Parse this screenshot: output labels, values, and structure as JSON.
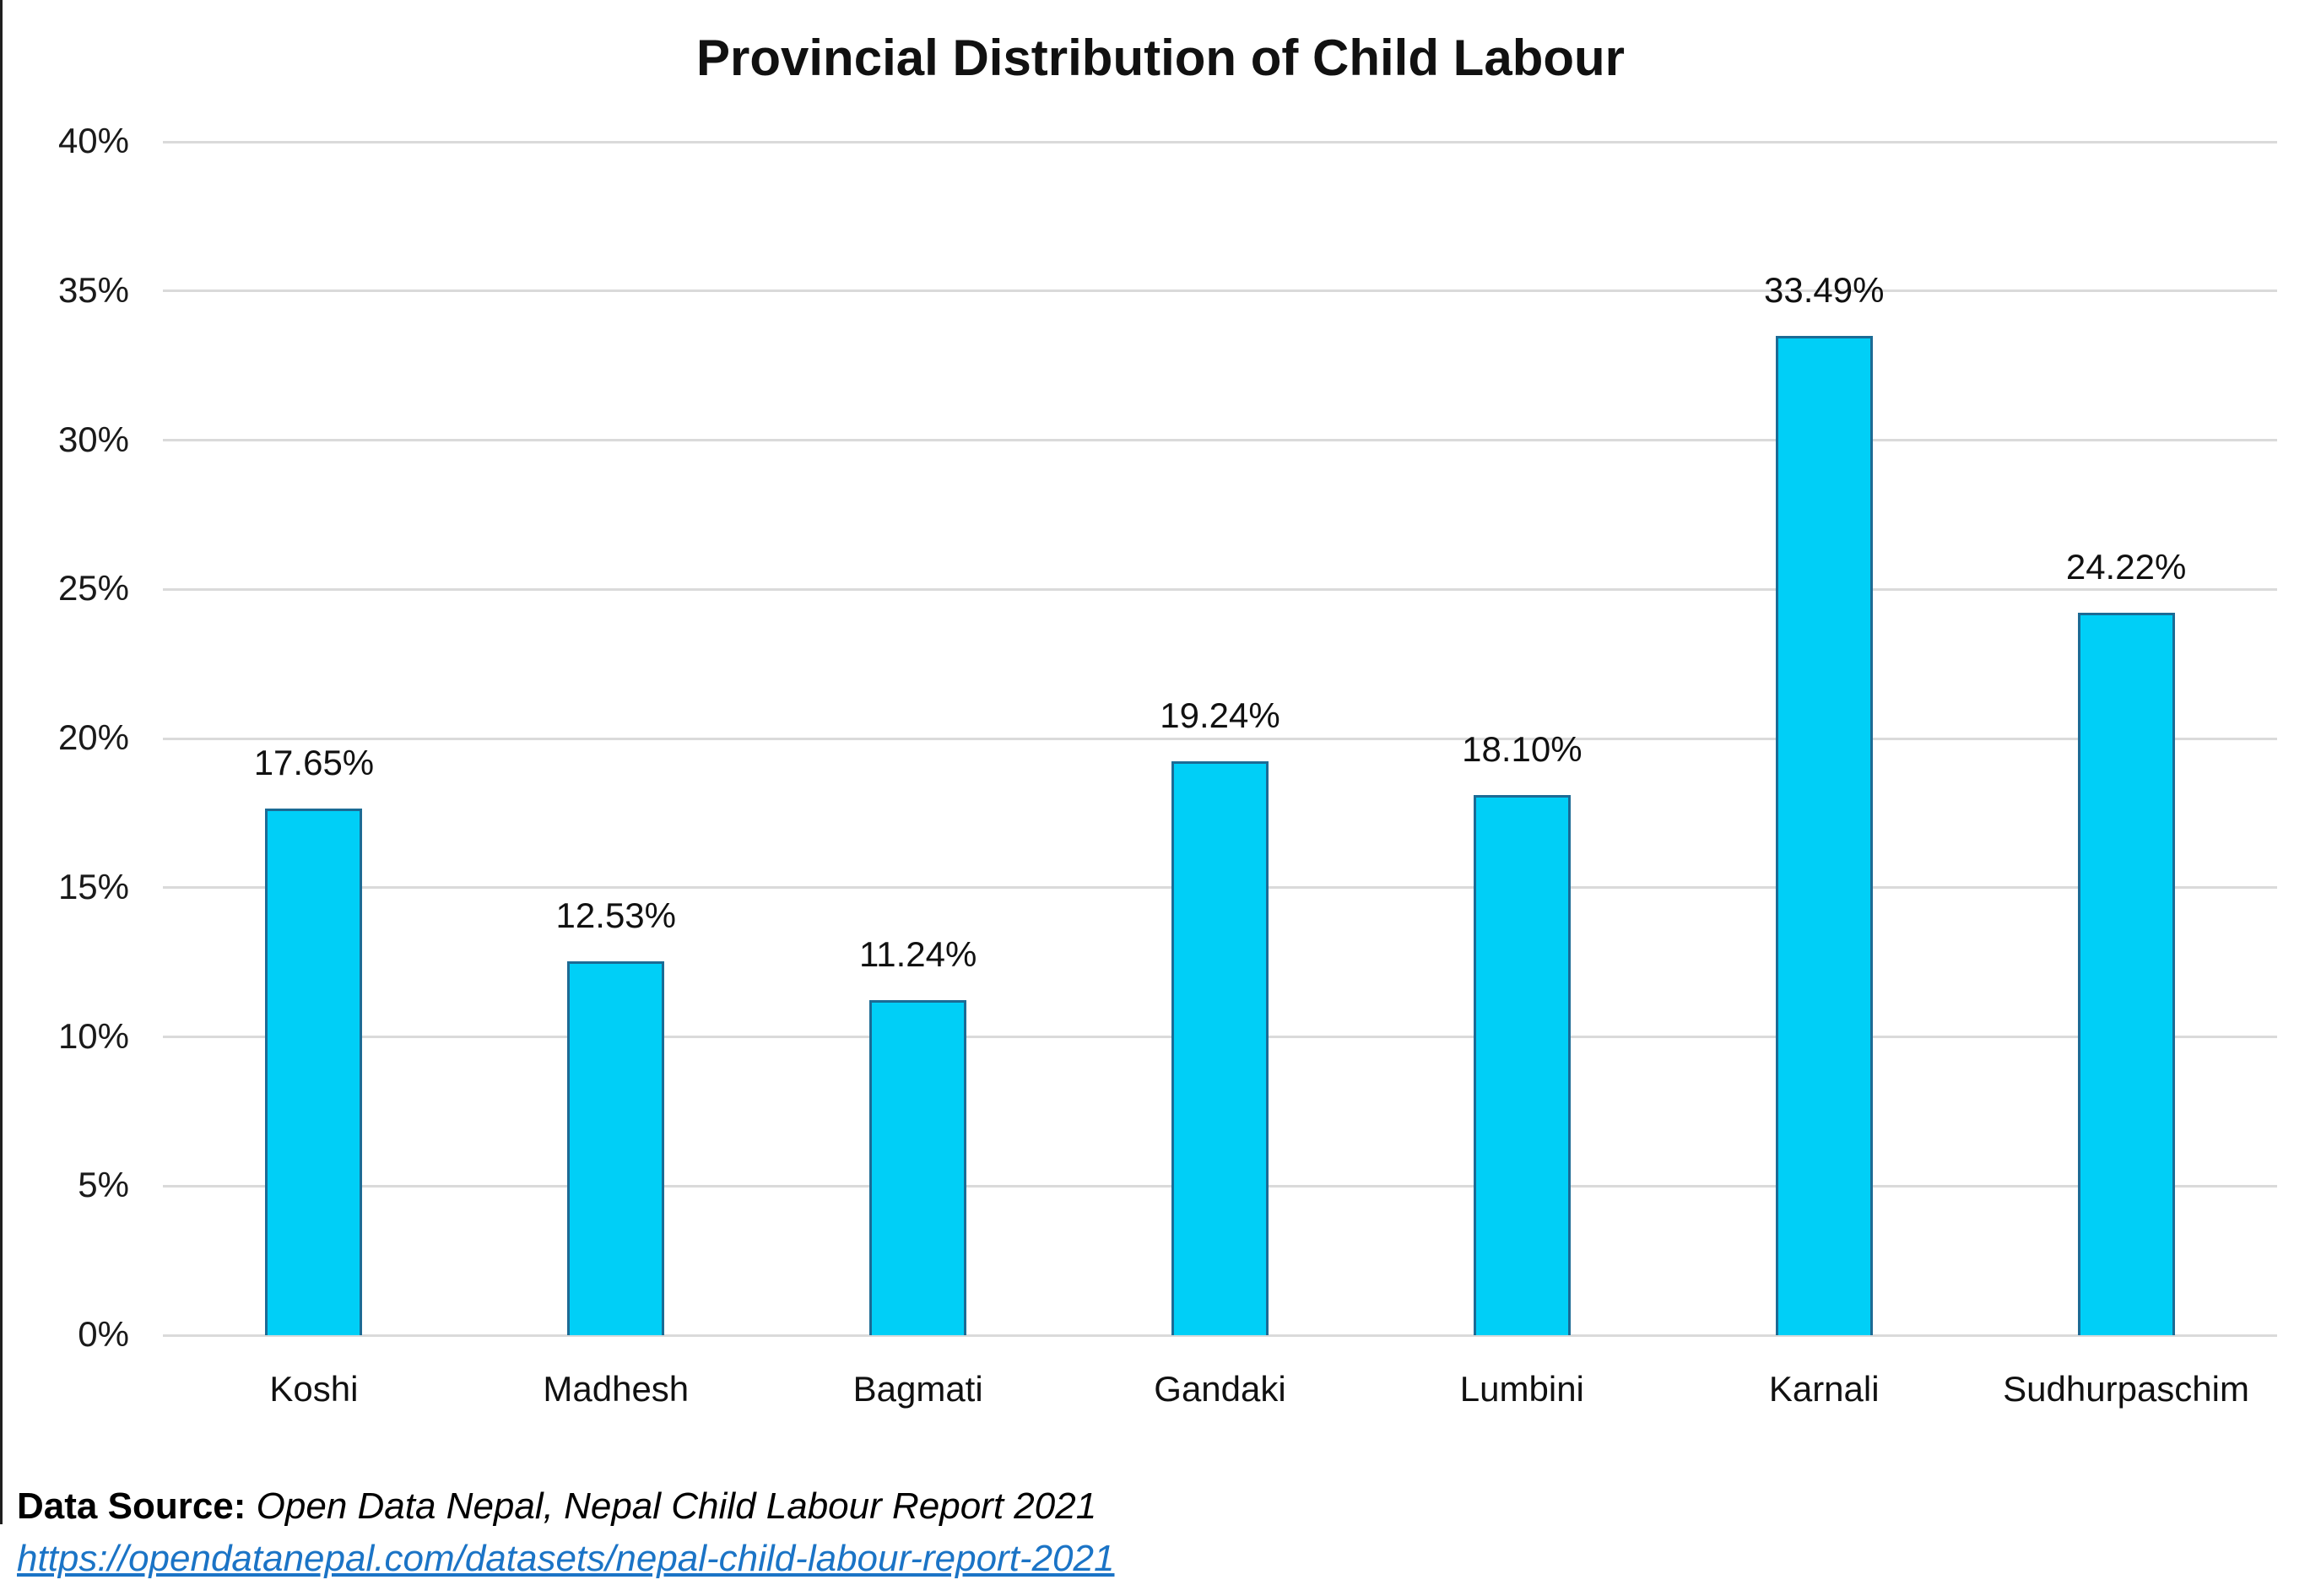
{
  "title": "Provincial Distribution of Child Labour",
  "source": {
    "label": "Data Source:",
    "text": " Open Data Nepal, Nepal Child Labour Report 2021",
    "url": "https://opendatanepal.com/datasets/nepal-child-labour-report-2021"
  },
  "colors": {
    "bar_fill": "#00CFF7",
    "bar_border": "#1C6B95",
    "gridline": "#DADADA",
    "link": "#1B74C6",
    "text": "#111111"
  },
  "chart_data": {
    "type": "bar",
    "title": "Provincial Distribution of Child Labour",
    "categories": [
      "Koshi",
      "Madhesh",
      "Bagmati",
      "Gandaki",
      "Lumbini",
      "Karnali",
      "Sudhurpaschim"
    ],
    "values": [
      17.65,
      12.53,
      11.24,
      19.24,
      18.1,
      33.49,
      24.22
    ],
    "value_labels": [
      "17.65%",
      "12.53%",
      "11.24%",
      "19.24%",
      "18.10%",
      "33.49%",
      "24.22%"
    ],
    "xlabel": "",
    "ylabel": "",
    "ylim": [
      0,
      40
    ],
    "ytick_step": 5,
    "ytick_labels": [
      "0%",
      "5%",
      "10%",
      "15%",
      "20%",
      "25%",
      "30%",
      "35%",
      "40%"
    ],
    "grid": true,
    "legend": false
  }
}
